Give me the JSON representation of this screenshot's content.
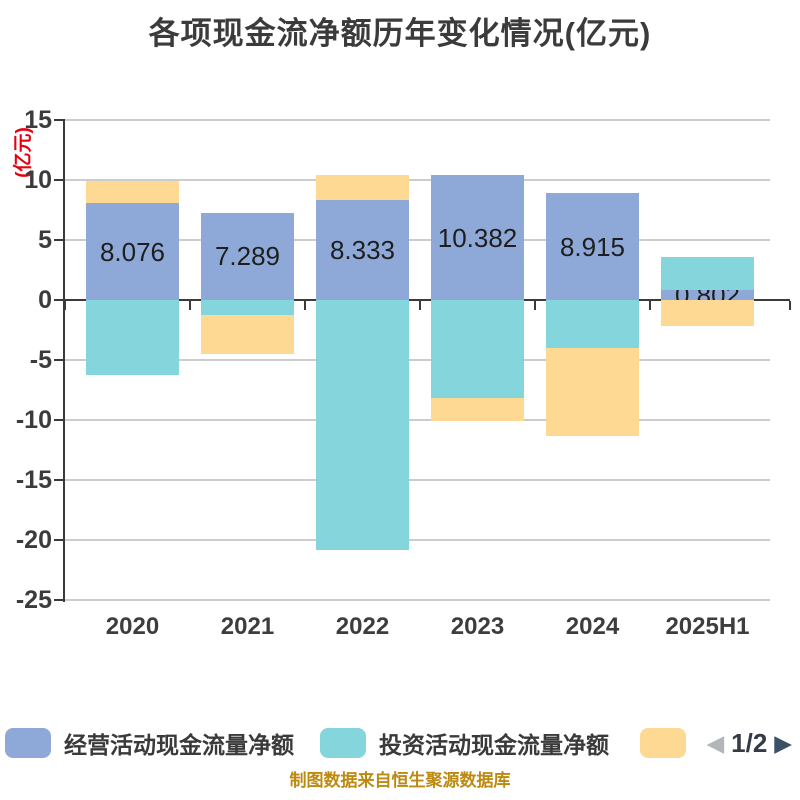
{
  "title": "各项现金流净额历年变化情况(亿元)",
  "y_axis_unit": "(亿元)",
  "footer": "制图数据来自恒生聚源数据库",
  "background": "#FFFFFF",
  "colors": {
    "operating_blue": "#8EA9D8",
    "investing_teal": "#85D6DC",
    "series3_yellow": "#FDD993",
    "gridline": "#CCCCCC",
    "axis": "#3A3A3A",
    "title_text": "#3B3B3B",
    "tick_text": "#3C3C3C",
    "unit_red": "#E60012",
    "footer_orange": "#BD8A10",
    "pagination_prev": "#B2B6BA",
    "pagination_next": "#3A5168"
  },
  "legend": {
    "items": [
      {
        "label": "经营活动现金流量净额",
        "color": "#8EA9D8"
      },
      {
        "label": "投资活动现金流量净额",
        "color": "#85D6DC"
      },
      {
        "label": "",
        "color": "#FDD993",
        "legend_label_visible": false
      }
    ],
    "pagination": {
      "current": "1/2",
      "prev_icon": "left-triangle",
      "next_icon": "right-triangle"
    }
  },
  "chart_data": {
    "type": "bar",
    "stacked": true,
    "grid": true,
    "legend_position": "bottom",
    "categories": [
      "2020",
      "2021",
      "2022",
      "2023",
      "2024",
      "2025H1"
    ],
    "ylim": [
      -25,
      15
    ],
    "ytick_step": 5,
    "yticks": [
      15,
      10,
      5,
      0,
      -5,
      -10,
      -15,
      -20,
      -25
    ],
    "ytick_labels": [
      "15",
      "10",
      "5",
      "0",
      "-5",
      "-10",
      "-15",
      "-20",
      "-25"
    ],
    "series": [
      {
        "name": "经营活动现金流量净额",
        "color": "#8EA9D8",
        "values": [
          8.076,
          7.289,
          8.333,
          10.382,
          8.915,
          0.802
        ],
        "data_labels": [
          "8.076",
          "7.289",
          "8.333",
          "10.382",
          "8.915",
          "0.802"
        ],
        "labels_shown": true
      },
      {
        "name": "投资活动现金流量净额",
        "color": "#85D6DC",
        "values": [
          -6.25,
          -1.25,
          -20.8,
          -8.2,
          -4.0,
          2.75
        ],
        "labels_shown": false
      },
      {
        "name": "",
        "color": "#FDD993",
        "values": [
          1.85,
          -3.25,
          2.1,
          -1.85,
          -7.35,
          -2.15
        ],
        "labels_shown": false,
        "legend_label_visible": false
      }
    ]
  }
}
